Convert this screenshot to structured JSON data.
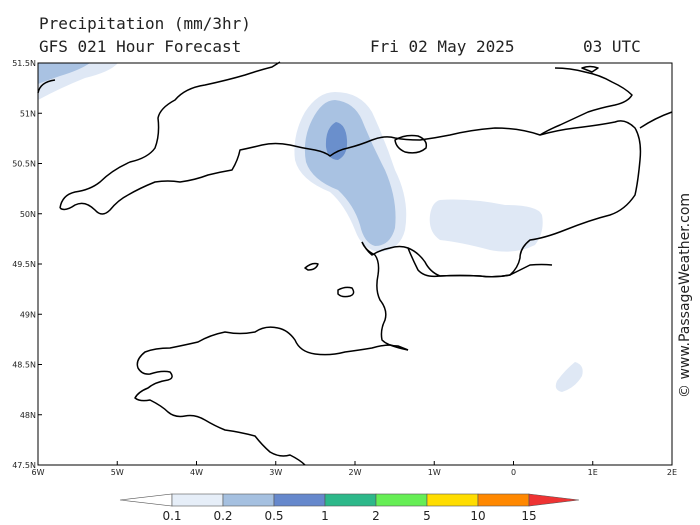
{
  "header": {
    "title": "Precipitation (mm/3hr)",
    "model": "GFS 021 Hour Forecast",
    "date": "Fri 02 May 2025",
    "time": "03 UTC"
  },
  "axes": {
    "longitude_labels": [
      "6W",
      "5W",
      "4W",
      "3W",
      "2W",
      "1W",
      "0",
      "1E",
      "2E"
    ],
    "latitude_labels": [
      "51.5N",
      "51N",
      "50.5N",
      "50N",
      "49.5N",
      "49N",
      "48.5N",
      "48N",
      "47.5N"
    ],
    "lon_range": [
      -6,
      2
    ],
    "lat_range": [
      47.5,
      51.5
    ]
  },
  "copyright": "© www.PassageWeather.com",
  "legend": {
    "ticks": [
      "0.1",
      "0.2",
      "0.5",
      "1",
      "2",
      "5",
      "10",
      "15"
    ],
    "colors": [
      "#ffffff",
      "#e6eef8",
      "#a5c0e0",
      "#6688cc",
      "#2db88a",
      "#66ee55",
      "#ffdd00",
      "#ff8800",
      "#ee3333"
    ]
  },
  "colors": {
    "precip_light": "#dfe8f5",
    "precip_mid": "#a9c2e2",
    "precip_heavy": "#6a8fcc",
    "coastline": "#000000"
  }
}
